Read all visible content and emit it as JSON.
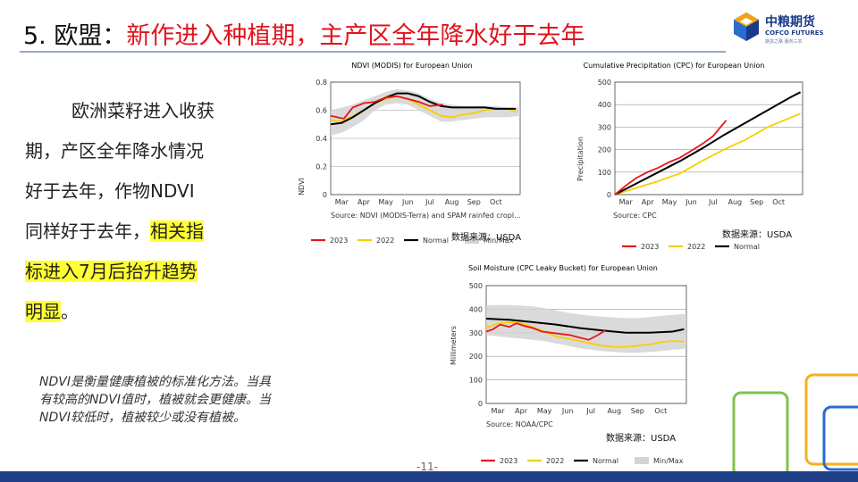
{
  "header": {
    "prefix": "5. 欧盟：",
    "headline": "新作进入种植期，主产区全年降水好于去年"
  },
  "logo": {
    "cn": "中粮期货",
    "en": "COFCO FUTURES",
    "tag": "期货之路 服务三农"
  },
  "body": {
    "line1": "欧洲菜籽进入收获",
    "line2": "期，产区全年降水情况",
    "line3": "好于去年，作物NDVI",
    "line4a": "同样好于去年，",
    "line4b": "相关指",
    "line5": "标进入7月后抬升趋势",
    "line6": "明显",
    "line6end": "。"
  },
  "note": "NDVI是衡量健康植被的标准化方法。当具有较高的NDVI值时，植被就会更健康。当NDVI较低时，植被较少或没有植被。",
  "source_note_label": "数据来源：USDA",
  "page_number": "-11-",
  "colors": {
    "y2023": "#e8141e",
    "y2022": "#f5d000",
    "normal": "#000000",
    "minmax": "#d4d4d4",
    "headline": "#e0141e"
  },
  "chart_data": [
    {
      "id": "ndvi",
      "type": "line",
      "title": "NDVI (MODIS) for European Union",
      "ylabel": "NDVI",
      "source": "Source: NDVI (MODIS-Terra) and SPAM rainfed cropl...",
      "ylim": [
        0,
        0.8
      ],
      "yticks": [
        "0",
        "0.2",
        "0.4",
        "0.6",
        "0.8"
      ],
      "xticks": [
        "Mar",
        "Apr",
        "May",
        "Jun",
        "Jul",
        "Aug",
        "Sep",
        "Oct"
      ],
      "xrange": [
        0,
        8.6
      ],
      "legend": [
        "2023",
        "2022",
        "Normal",
        "Min/Max"
      ],
      "series": [
        {
          "name": "Min/Max",
          "x": [
            0,
            0.5,
            1,
            1.5,
            2,
            2.5,
            3,
            3.5,
            4,
            4.5,
            5,
            5.5,
            6,
            6.5,
            7,
            7.5,
            8,
            8.6
          ],
          "min": [
            0.42,
            0.44,
            0.48,
            0.53,
            0.6,
            0.64,
            0.65,
            0.64,
            0.6,
            0.56,
            0.52,
            0.52,
            0.53,
            0.54,
            0.55,
            0.55,
            0.55,
            0.56
          ],
          "max": [
            0.6,
            0.62,
            0.64,
            0.67,
            0.7,
            0.73,
            0.75,
            0.74,
            0.72,
            0.68,
            0.65,
            0.64,
            0.63,
            0.63,
            0.63,
            0.63,
            0.62,
            0.62
          ]
        },
        {
          "name": "Normal",
          "x": [
            0,
            0.5,
            1,
            1.5,
            2,
            2.5,
            3,
            3.5,
            4,
            4.5,
            5,
            5.5,
            6,
            6.5,
            7,
            7.5,
            8,
            8.4
          ],
          "y": [
            0.5,
            0.51,
            0.55,
            0.6,
            0.65,
            0.69,
            0.72,
            0.72,
            0.7,
            0.66,
            0.63,
            0.62,
            0.62,
            0.62,
            0.62,
            0.61,
            0.61,
            0.61
          ]
        },
        {
          "name": "2022",
          "x": [
            0,
            0.5,
            1,
            1.5,
            2,
            2.5,
            3,
            3.5,
            4,
            4.5,
            5,
            5.5,
            6,
            6.5,
            7,
            7.5,
            8,
            8.4
          ],
          "y": [
            0.53,
            0.52,
            0.56,
            0.6,
            0.65,
            0.68,
            0.7,
            0.68,
            0.64,
            0.6,
            0.56,
            0.55,
            0.57,
            0.58,
            0.6,
            0.61,
            0.61,
            0.59
          ]
        },
        {
          "name": "2023",
          "x": [
            0,
            0.3,
            0.6,
            1,
            1.5,
            2,
            2.5,
            3,
            3.5,
            4,
            4.5,
            5.1
          ],
          "y": [
            0.56,
            0.55,
            0.54,
            0.62,
            0.65,
            0.66,
            0.69,
            0.7,
            0.68,
            0.66,
            0.63,
            0.64
          ]
        }
      ]
    },
    {
      "id": "precip",
      "type": "line",
      "title": "Cumulative Precipitation (CPC) for European Union",
      "ylabel": "Precipitation",
      "source": "Source: CPC",
      "ylim": [
        0,
        500
      ],
      "yticks": [
        "0",
        "100",
        "200",
        "300",
        "400",
        "500"
      ],
      "xticks": [
        "Mar",
        "Apr",
        "May",
        "Jun",
        "Jul",
        "Aug",
        "Sep",
        "Oct"
      ],
      "xrange": [
        0,
        8.6
      ],
      "legend": [
        "2023",
        "2022",
        "Normal"
      ],
      "series": [
        {
          "name": "Normal",
          "x": [
            0,
            1,
            2,
            3,
            4,
            5,
            6,
            7,
            8,
            8.5
          ],
          "y": [
            0,
            50,
            100,
            150,
            205,
            265,
            320,
            375,
            430,
            455
          ]
        },
        {
          "name": "2022",
          "x": [
            0,
            1,
            2,
            3,
            4,
            5,
            6,
            7,
            8,
            8.5
          ],
          "y": [
            0,
            30,
            60,
            95,
            150,
            200,
            245,
            300,
            340,
            360
          ]
        },
        {
          "name": "2023",
          "x": [
            0,
            0.5,
            1,
            1.5,
            2,
            2.5,
            3,
            3.5,
            4,
            4.5,
            5.1
          ],
          "y": [
            0,
            40,
            75,
            100,
            120,
            145,
            165,
            195,
            225,
            260,
            330
          ]
        }
      ]
    },
    {
      "id": "soil",
      "type": "line",
      "title": "Soil Moisture (CPC Leaky Bucket) for European Union",
      "ylabel": "Millimeters",
      "source": "Source: NOAA/CPC",
      "ylim": [
        0,
        500
      ],
      "yticks": [
        "0",
        "100",
        "200",
        "300",
        "400",
        "500"
      ],
      "xticks": [
        "Mar",
        "Apr",
        "May",
        "Jun",
        "Jul",
        "Aug",
        "Sep",
        "Oct"
      ],
      "xrange": [
        0,
        8.6
      ],
      "legend": [
        "2023",
        "2022",
        "Normal",
        "Min/Max"
      ],
      "series": [
        {
          "name": "Min/Max",
          "x": [
            0,
            0.5,
            1,
            1.5,
            2,
            2.5,
            3,
            3.5,
            4,
            4.5,
            5,
            5.5,
            6,
            6.5,
            7,
            7.5,
            8,
            8.6
          ],
          "min": [
            290,
            285,
            280,
            275,
            270,
            265,
            255,
            245,
            235,
            228,
            222,
            218,
            215,
            215,
            218,
            222,
            228,
            232
          ],
          "max": [
            415,
            418,
            418,
            415,
            412,
            405,
            395,
            385,
            378,
            372,
            368,
            365,
            362,
            362,
            366,
            372,
            376,
            380
          ]
        },
        {
          "name": "Normal",
          "x": [
            0,
            1,
            2,
            3,
            4,
            5,
            6,
            7,
            8,
            8.5
          ],
          "y": [
            360,
            355,
            345,
            335,
            320,
            310,
            300,
            300,
            305,
            315
          ]
        },
        {
          "name": "2022",
          "x": [
            0,
            0.5,
            1,
            1.5,
            2,
            2.5,
            3,
            3.5,
            4,
            4.5,
            5,
            5.5,
            6,
            6.5,
            7,
            7.5,
            8,
            8.5
          ],
          "y": [
            320,
            340,
            345,
            340,
            325,
            305,
            285,
            275,
            265,
            255,
            245,
            240,
            240,
            245,
            250,
            260,
            265,
            262
          ]
        },
        {
          "name": "2023",
          "x": [
            0,
            0.3,
            0.6,
            1,
            1.3,
            1.6,
            2,
            2.4,
            2.8,
            3.2,
            3.6,
            4,
            4.4,
            4.8,
            5.1
          ],
          "y": [
            305,
            315,
            335,
            325,
            340,
            330,
            320,
            305,
            300,
            295,
            290,
            280,
            270,
            290,
            310
          ]
        }
      ]
    }
  ]
}
